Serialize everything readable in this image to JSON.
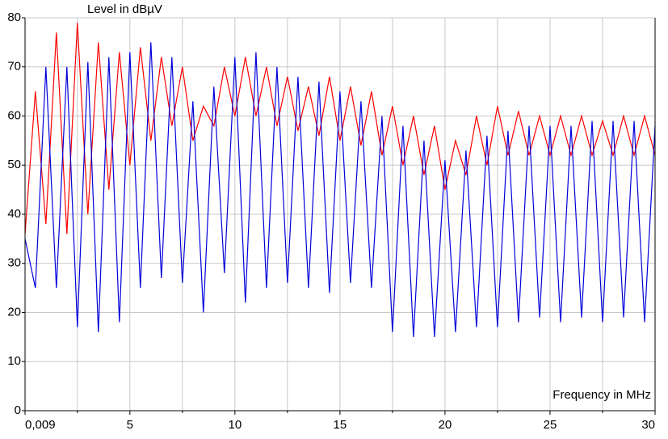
{
  "chart_data": {
    "type": "line",
    "ylabel": "Level in dBµV",
    "xlabel": "Frequency in MHz",
    "x": [
      0.009,
      0.5,
      1,
      1.5,
      2,
      2.5,
      3,
      3.5,
      4,
      4.5,
      5,
      5.5,
      6,
      6.5,
      7,
      7.5,
      8,
      8.5,
      9,
      9.5,
      10,
      10.5,
      11,
      11.5,
      12,
      12.5,
      13,
      13.5,
      14,
      14.5,
      15,
      15.5,
      16,
      16.5,
      17,
      17.5,
      18,
      18.5,
      19,
      19.5,
      20,
      20.5,
      21,
      21.5,
      22,
      22.5,
      23,
      23.5,
      24,
      24.5,
      25,
      25.5,
      26,
      26.5,
      27,
      27.5,
      28,
      28.5,
      29,
      29.5,
      30
    ],
    "series": [
      {
        "color": "#ff0000",
        "values": [
          36,
          65,
          38,
          77,
          36,
          79,
          40,
          75,
          45,
          73,
          50,
          74,
          55,
          72,
          58,
          70,
          55,
          62,
          58,
          70,
          60,
          72,
          60,
          70,
          58,
          68,
          57,
          66,
          56,
          68,
          55,
          66,
          54,
          65,
          52,
          62,
          50,
          60,
          48,
          58,
          45,
          55,
          48,
          60,
          50,
          62,
          52,
          61,
          52,
          60,
          52,
          60,
          52,
          60,
          52,
          59,
          52,
          60,
          52,
          60,
          52
        ]
      },
      {
        "color": "#0000dd",
        "values": [
          35,
          25,
          70,
          25,
          70,
          17,
          71,
          16,
          72,
          18,
          73,
          25,
          75,
          27,
          72,
          26,
          63,
          20,
          66,
          28,
          72,
          22,
          73,
          25,
          70,
          26,
          68,
          25,
          67,
          24,
          65,
          26,
          63,
          25,
          60,
          16,
          58,
          15,
          55,
          15,
          51,
          16,
          53,
          17,
          56,
          17,
          57,
          18,
          58,
          19,
          58,
          18,
          58,
          19,
          59,
          18,
          59,
          19,
          59,
          18,
          58
        ]
      }
    ],
    "xlim": [
      0.009,
      30
    ],
    "xticks": [
      {
        "value": 0.009,
        "label": "0,009"
      },
      5,
      10,
      15,
      20,
      25,
      30
    ],
    "xgrid_minor": [
      2.5,
      7.5,
      12.5,
      17.5,
      22.5,
      27.5
    ],
    "ylim": [
      0,
      80
    ],
    "yticks": [
      0,
      10,
      20,
      30,
      40,
      50,
      60,
      70,
      80
    ],
    "grid": true
  }
}
